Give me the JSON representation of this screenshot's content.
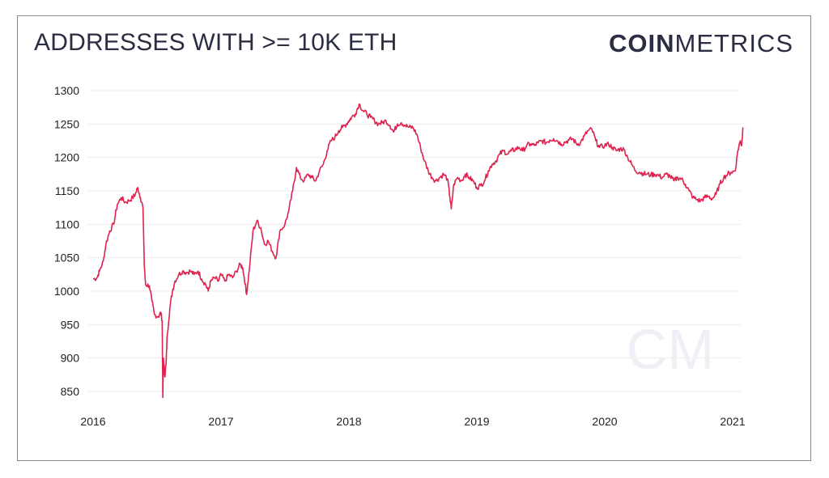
{
  "header": {
    "title": "ADDRESSES WITH >= 10K ETH",
    "logo_bold": "COIN",
    "logo_light": "METRICS",
    "watermark": "CM"
  },
  "chart_data": {
    "type": "line",
    "title": "ADDRESSES WITH >= 10K ETH",
    "xlabel": "",
    "ylabel": "",
    "xlim": [
      2016.0,
      2021.08
    ],
    "ylim": [
      840,
      1310
    ],
    "yticks": [
      850,
      900,
      950,
      1000,
      1050,
      1100,
      1150,
      1200,
      1250,
      1300
    ],
    "xticks": [
      "2016",
      "2017",
      "2018",
      "2019",
      "2020",
      "2021"
    ],
    "grid": "horizontal",
    "colors": {
      "line": "#e0224e",
      "grid": "#ececec",
      "text": "#222222"
    },
    "series": [
      {
        "values": [
          [
            2016.0,
            1018
          ],
          [
            2016.03,
            1020
          ],
          [
            2016.05,
            1030
          ],
          [
            2016.08,
            1045
          ],
          [
            2016.1,
            1070
          ],
          [
            2016.13,
            1090
          ],
          [
            2016.16,
            1100
          ],
          [
            2016.19,
            1130
          ],
          [
            2016.22,
            1140
          ],
          [
            2016.25,
            1133
          ],
          [
            2016.28,
            1135
          ],
          [
            2016.31,
            1140
          ],
          [
            2016.33,
            1145
          ],
          [
            2016.35,
            1155
          ],
          [
            2016.37,
            1140
          ],
          [
            2016.39,
            1125
          ],
          [
            2016.4,
            1040
          ],
          [
            2016.41,
            1010
          ],
          [
            2016.44,
            1008
          ],
          [
            2016.46,
            985
          ],
          [
            2016.48,
            965
          ],
          [
            2016.51,
            962
          ],
          [
            2016.53,
            968
          ],
          [
            2016.54,
            955
          ],
          [
            2016.545,
            841
          ],
          [
            2016.55,
            900
          ],
          [
            2016.56,
            872
          ],
          [
            2016.57,
            890
          ],
          [
            2016.58,
            935
          ],
          [
            2016.6,
            975
          ],
          [
            2016.62,
            1000
          ],
          [
            2016.64,
            1015
          ],
          [
            2016.67,
            1025
          ],
          [
            2016.7,
            1030
          ],
          [
            2016.73,
            1028
          ],
          [
            2016.76,
            1030
          ],
          [
            2016.79,
            1025
          ],
          [
            2016.82,
            1030
          ],
          [
            2016.85,
            1018
          ],
          [
            2016.88,
            1010
          ],
          [
            2016.9,
            1000
          ],
          [
            2016.92,
            1015
          ],
          [
            2016.95,
            1020
          ],
          [
            2016.98,
            1015
          ],
          [
            2017.0,
            1025
          ],
          [
            2017.03,
            1015
          ],
          [
            2017.06,
            1025
          ],
          [
            2017.09,
            1020
          ],
          [
            2017.12,
            1030
          ],
          [
            2017.15,
            1040
          ],
          [
            2017.17,
            1035
          ],
          [
            2017.19,
            1010
          ],
          [
            2017.2,
            995
          ],
          [
            2017.22,
            1030
          ],
          [
            2017.25,
            1090
          ],
          [
            2017.28,
            1105
          ],
          [
            2017.31,
            1095
          ],
          [
            2017.34,
            1070
          ],
          [
            2017.37,
            1075
          ],
          [
            2017.4,
            1060
          ],
          [
            2017.43,
            1050
          ],
          [
            2017.46,
            1090
          ],
          [
            2017.5,
            1100
          ],
          [
            2017.53,
            1120
          ],
          [
            2017.56,
            1150
          ],
          [
            2017.59,
            1185
          ],
          [
            2017.62,
            1170
          ],
          [
            2017.65,
            1165
          ],
          [
            2017.68,
            1175
          ],
          [
            2017.71,
            1170
          ],
          [
            2017.74,
            1165
          ],
          [
            2017.77,
            1180
          ],
          [
            2017.8,
            1190
          ],
          [
            2017.83,
            1210
          ],
          [
            2017.86,
            1225
          ],
          [
            2017.89,
            1230
          ],
          [
            2017.92,
            1240
          ],
          [
            2017.95,
            1245
          ],
          [
            2017.98,
            1250
          ],
          [
            2018.0,
            1255
          ],
          [
            2018.02,
            1260
          ],
          [
            2018.05,
            1265
          ],
          [
            2018.08,
            1280
          ],
          [
            2018.11,
            1270
          ],
          [
            2018.14,
            1265
          ],
          [
            2018.17,
            1260
          ],
          [
            2018.2,
            1255
          ],
          [
            2018.23,
            1250
          ],
          [
            2018.26,
            1252
          ],
          [
            2018.29,
            1255
          ],
          [
            2018.32,
            1248
          ],
          [
            2018.35,
            1238
          ],
          [
            2018.38,
            1250
          ],
          [
            2018.41,
            1252
          ],
          [
            2018.44,
            1248
          ],
          [
            2018.47,
            1245
          ],
          [
            2018.5,
            1245
          ],
          [
            2018.53,
            1235
          ],
          [
            2018.56,
            1215
          ],
          [
            2018.59,
            1195
          ],
          [
            2018.62,
            1180
          ],
          [
            2018.65,
            1170
          ],
          [
            2018.68,
            1165
          ],
          [
            2018.71,
            1170
          ],
          [
            2018.74,
            1175
          ],
          [
            2018.77,
            1168
          ],
          [
            2018.79,
            1140
          ],
          [
            2018.8,
            1123
          ],
          [
            2018.82,
            1160
          ],
          [
            2018.85,
            1170
          ],
          [
            2018.88,
            1165
          ],
          [
            2018.91,
            1175
          ],
          [
            2018.94,
            1170
          ],
          [
            2018.97,
            1165
          ],
          [
            2019.0,
            1155
          ],
          [
            2019.03,
            1158
          ],
          [
            2019.06,
            1165
          ],
          [
            2019.09,
            1180
          ],
          [
            2019.12,
            1190
          ],
          [
            2019.15,
            1195
          ],
          [
            2019.18,
            1205
          ],
          [
            2019.21,
            1210
          ],
          [
            2019.24,
            1205
          ],
          [
            2019.27,
            1210
          ],
          [
            2019.3,
            1212
          ],
          [
            2019.33,
            1215
          ],
          [
            2019.36,
            1210
          ],
          [
            2019.39,
            1218
          ],
          [
            2019.42,
            1220
          ],
          [
            2019.45,
            1218
          ],
          [
            2019.48,
            1222
          ],
          [
            2019.51,
            1225
          ],
          [
            2019.54,
            1222
          ],
          [
            2019.57,
            1226
          ],
          [
            2019.6,
            1228
          ],
          [
            2019.63,
            1225
          ],
          [
            2019.66,
            1220
          ],
          [
            2019.69,
            1223
          ],
          [
            2019.72,
            1226
          ],
          [
            2019.75,
            1228
          ],
          [
            2019.78,
            1220
          ],
          [
            2019.81,
            1222
          ],
          [
            2019.84,
            1232
          ],
          [
            2019.87,
            1240
          ],
          [
            2019.9,
            1242
          ],
          [
            2019.93,
            1225
          ],
          [
            2019.96,
            1215
          ],
          [
            2020.0,
            1218
          ],
          [
            2020.03,
            1220
          ],
          [
            2020.06,
            1215
          ],
          [
            2020.09,
            1210
          ],
          [
            2020.12,
            1213
          ],
          [
            2020.15,
            1212
          ],
          [
            2020.18,
            1200
          ],
          [
            2020.21,
            1190
          ],
          [
            2020.24,
            1180
          ],
          [
            2020.27,
            1178
          ],
          [
            2020.3,
            1176
          ],
          [
            2020.33,
            1175
          ],
          [
            2020.36,
            1174
          ],
          [
            2020.39,
            1175
          ],
          [
            2020.42,
            1173
          ],
          [
            2020.45,
            1170
          ],
          [
            2020.48,
            1175
          ],
          [
            2020.51,
            1172
          ],
          [
            2020.54,
            1165
          ],
          [
            2020.57,
            1170
          ],
          [
            2020.6,
            1168
          ],
          [
            2020.63,
            1160
          ],
          [
            2020.66,
            1150
          ],
          [
            2020.69,
            1140
          ],
          [
            2020.72,
            1137
          ],
          [
            2020.75,
            1135
          ],
          [
            2020.78,
            1140
          ],
          [
            2020.81,
            1142
          ],
          [
            2020.84,
            1138
          ],
          [
            2020.87,
            1145
          ],
          [
            2020.9,
            1160
          ],
          [
            2020.93,
            1170
          ],
          [
            2020.96,
            1175
          ],
          [
            2020.99,
            1178
          ],
          [
            2021.02,
            1180
          ],
          [
            2021.04,
            1210
          ],
          [
            2021.06,
            1225
          ],
          [
            2021.07,
            1218
          ],
          [
            2021.08,
            1245
          ]
        ]
      }
    ]
  }
}
